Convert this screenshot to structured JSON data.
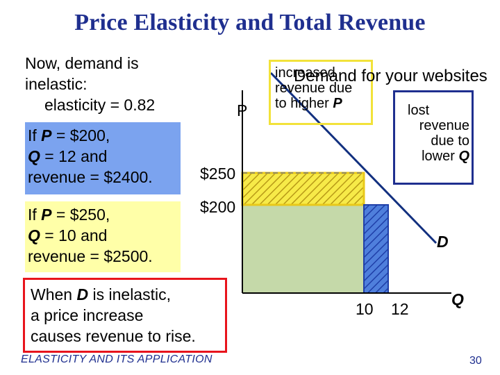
{
  "slide": {
    "title": "Price Elasticity and Total Revenue",
    "intro_line1": "Now, demand is",
    "intro_line2": "inelastic:",
    "intro_line3": "elasticity = 0.82",
    "case_a": {
      "prefix1": "If ",
      "var1": "P",
      "text1": " = $200,",
      "var2": "Q",
      "text2": " = 12 and",
      "text3": "revenue = $2400."
    },
    "case_b": {
      "prefix1": "If ",
      "var1": "P",
      "text1": " = $250,",
      "var2": "Q",
      "text2": " = 10 and",
      "text3": "revenue = $2500."
    },
    "conclusion": {
      "line1_pre": "When ",
      "line1_var": "D",
      "line1_post": " is inelastic,",
      "line2": "a price increase",
      "line3": "causes revenue to rise."
    },
    "footer": "ELASTICITY AND ITS APPLICATION",
    "page_number": "30",
    "colors": {
      "title": "#1f2f8f",
      "blue_box": "#7ba3ef",
      "yellow_box": "#ffffa8",
      "red_border": "#e8141c",
      "green_area": "#c5d9a9",
      "demand_line": "#12307f"
    }
  },
  "graph": {
    "y_axis_label": "P",
    "x_axis_label": "Q",
    "price_high_label": "$250",
    "price_low_label": "$200",
    "qty_low_label": "10",
    "qty_high_label": "12",
    "demand_label": "D",
    "overlay_text": "Demand for your websites",
    "gain_callout": {
      "line1": "increased",
      "line2": "revenue due",
      "line3_pre": "to higher ",
      "line3_var": "P"
    },
    "loss_callout": {
      "line1": "lost",
      "line2": "revenue",
      "line3": "due to",
      "line4_pre": "lower ",
      "line4_var": "Q"
    }
  }
}
